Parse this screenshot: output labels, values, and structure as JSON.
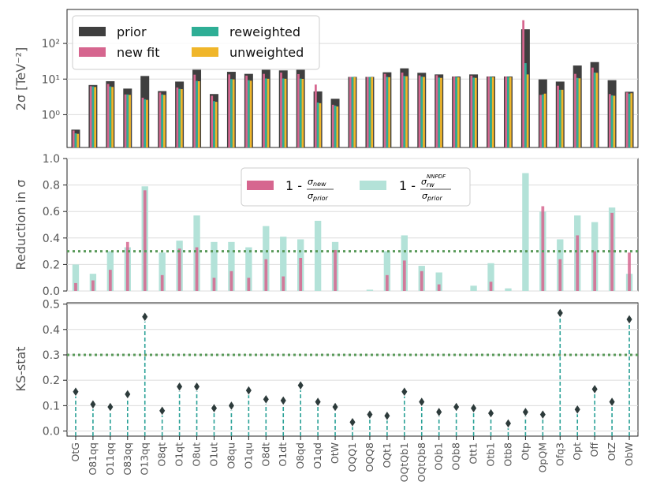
{
  "colors": {
    "prior": "#3f3f3f",
    "new_fit": "#d6668f",
    "reweighted": "#2eae95",
    "unweighted": "#f0b62a",
    "nnpdf": "#b3e2d8",
    "ks_line": "#2aa197",
    "ks_marker": "#2d3b3b",
    "threshold": "#5a9a5a"
  },
  "chart_data": [
    {
      "type": "bar",
      "panel": "cross-section",
      "ylabel": "2σ [TeV⁻²]",
      "yscale": "log",
      "ylim": [
        0.12,
        900
      ],
      "yticks": [
        {
          "value": 1,
          "label": "10⁰"
        },
        {
          "value": 10,
          "label": "10¹"
        },
        {
          "value": 100,
          "label": "10²"
        }
      ],
      "legend_position": "top-left",
      "categories": [
        "OtG",
        "O81qq",
        "O11qq",
        "O83qq",
        "O13qq",
        "O8qt",
        "O1qt",
        "O8ut",
        "O1ut",
        "O8qu",
        "O1qu",
        "O8dt",
        "O1dt",
        "O8qd",
        "O1qd",
        "OtW",
        "OQQ1",
        "OQQ8",
        "OQt1",
        "OQtQb1",
        "OQtQb8",
        "OQb1",
        "OQb8",
        "Ott1",
        "Otb1",
        "Otb8",
        "Otp",
        "OpQM",
        "Ofq3",
        "Opt",
        "Off",
        "OtZ",
        "ObW"
      ],
      "series": [
        {
          "name": "prior",
          "values": [
            0.38,
            6.8,
            8.7,
            5.4,
            12.2,
            4.6,
            8.5,
            19.8,
            3.8,
            16.0,
            14.0,
            18.5,
            17.5,
            18.3,
            4.5,
            2.8,
            11.5,
            11.5,
            15.5,
            20.0,
            15.0,
            13.5,
            11.8,
            13.5,
            11.8,
            11.8,
            250,
            9.8,
            8.5,
            24.0,
            30.0,
            9.3,
            4.4
          ]
        },
        {
          "name": "new fit",
          "values": [
            0.36,
            6.3,
            7.3,
            3.7,
            3.0,
            4.2,
            5.8,
            13.3,
            3.4,
            13.5,
            12.5,
            14.0,
            15.2,
            13.8,
            7.0,
            1.9,
            11.5,
            11.5,
            14.0,
            15.2,
            12.7,
            12.8,
            11.7,
            12.5,
            11.7,
            11.7,
            450,
            3.6,
            6.5,
            14.0,
            21.0,
            3.8,
            4.2
          ]
        },
        {
          "name": "reweighted",
          "values": [
            0.3,
            6.2,
            6.2,
            3.7,
            2.7,
            3.7,
            5.3,
            8.9,
            2.4,
            10.0,
            9.3,
            10.4,
            10.4,
            10.3,
            2.2,
            1.8,
            11.5,
            11.5,
            11.5,
            12.2,
            11.7,
            11.0,
            11.4,
            11.0,
            11.5,
            11.5,
            28,
            3.7,
            5.0,
            10.8,
            15.2,
            3.5,
            3.9
          ]
        },
        {
          "name": "unweighted",
          "values": [
            0.29,
            6.0,
            6.0,
            3.6,
            2.6,
            3.6,
            5.2,
            8.7,
            2.3,
            9.8,
            9.0,
            10.2,
            10.2,
            10.1,
            2.1,
            1.7,
            11.3,
            11.3,
            11.3,
            12.0,
            11.5,
            10.8,
            11.2,
            10.8,
            11.3,
            11.3,
            13.5,
            3.9,
            5.0,
            10.5,
            15.0,
            3.4,
            4.0
          ]
        }
      ]
    },
    {
      "type": "bar",
      "panel": "reduction",
      "ylabel": "Reduction in σ",
      "ylim": [
        0,
        1.0
      ],
      "yticks": [
        0.0,
        0.2,
        0.4,
        0.6,
        0.8,
        1.0
      ],
      "threshold": 0.3,
      "legend_position": "top-center",
      "series": [
        {
          "name": "1 - σ_new / σ_prior",
          "values": [
            0.06,
            0.08,
            0.16,
            0.37,
            0.76,
            0.12,
            0.32,
            0.33,
            0.1,
            0.15,
            0.1,
            0.24,
            0.11,
            0.25,
            0.0,
            0.31,
            0.0,
            0.0,
            0.12,
            0.23,
            0.15,
            0.05,
            0.0,
            0.0,
            0.07,
            0.0,
            0.0,
            0.64,
            0.24,
            0.42,
            0.3,
            0.59,
            0.29
          ]
        },
        {
          "name": "1 - σ_rw^NNPDF / σ_prior",
          "values": [
            0.2,
            0.13,
            0.3,
            0.33,
            0.79,
            0.29,
            0.38,
            0.57,
            0.37,
            0.37,
            0.33,
            0.49,
            0.41,
            0.39,
            0.53,
            0.37,
            0.0,
            0.01,
            0.3,
            0.42,
            0.19,
            0.14,
            0.0,
            0.04,
            0.21,
            0.02,
            0.89,
            0.6,
            0.39,
            0.57,
            0.52,
            0.63,
            0.13
          ]
        }
      ]
    },
    {
      "type": "scatter",
      "panel": "ks",
      "ylabel": "KS-stat",
      "ylim": [
        0,
        0.5
      ],
      "yticks": [
        0.0,
        0.1,
        0.2,
        0.3,
        0.4,
        0.5
      ],
      "threshold": 0.3,
      "values": [
        0.155,
        0.105,
        0.095,
        0.145,
        0.45,
        0.08,
        0.175,
        0.175,
        0.09,
        0.1,
        0.16,
        0.125,
        0.12,
        0.18,
        0.115,
        0.095,
        0.035,
        0.065,
        0.06,
        0.155,
        0.115,
        0.075,
        0.095,
        0.09,
        0.07,
        0.03,
        0.075,
        0.065,
        0.465,
        0.085,
        0.165,
        0.115,
        0.44
      ]
    }
  ]
}
